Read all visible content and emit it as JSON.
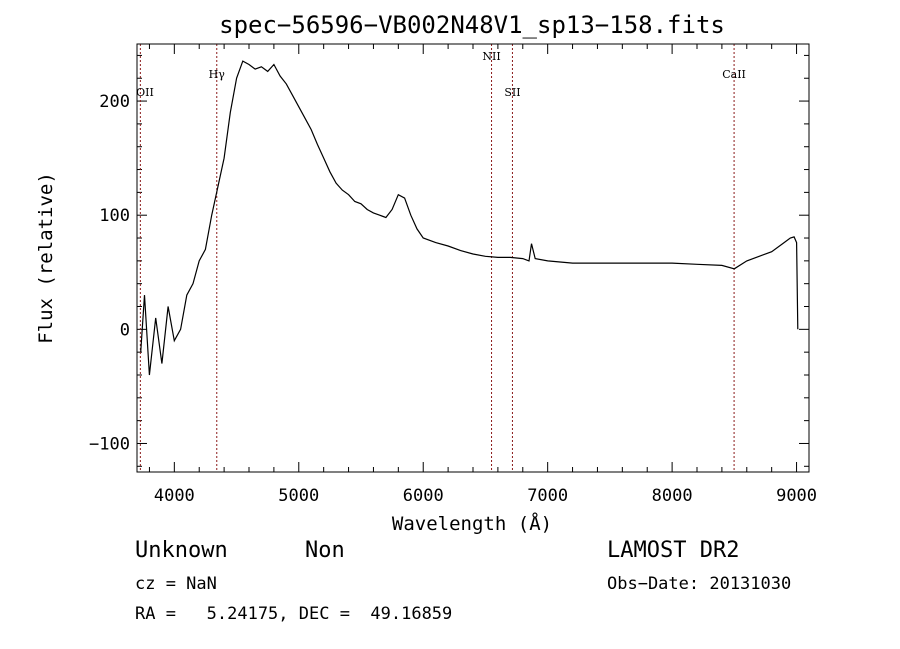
{
  "chart_data": {
    "type": "line",
    "title": "spec−56596−VB002N48V1_sp13−158.fits",
    "xlabel": "Wavelength (Å)",
    "ylabel": "Flux (relative)",
    "xlim": [
      3700,
      9100
    ],
    "ylim": [
      -125,
      250
    ],
    "xticks": [
      4000,
      5000,
      6000,
      7000,
      8000,
      9000
    ],
    "xtick_labels": [
      "4000",
      "5000",
      "6000",
      "7000",
      "8000",
      "9000"
    ],
    "yticks": [
      -100,
      0,
      100,
      200
    ],
    "ytick_labels": [
      "−100",
      "0",
      "100",
      "200"
    ],
    "grid": false,
    "lines": [
      {
        "label": "OII",
        "x": 3727
      },
      {
        "label": "Hγ",
        "x": 4341
      },
      {
        "label": "NII",
        "x": 6549
      },
      {
        "label": "SII",
        "x": 6717
      },
      {
        "label": "CaII",
        "x": 8498
      }
    ],
    "series": [
      {
        "x": [
          3730,
          3760,
          3800,
          3850,
          3900,
          3950,
          4000,
          4050,
          4100,
          4150,
          4200,
          4250,
          4300,
          4350,
          4400,
          4450,
          4500,
          4550,
          4600,
          4650,
          4700,
          4750,
          4800,
          4850,
          4900,
          4950,
          5000,
          5050,
          5100,
          5150,
          5200,
          5250,
          5300,
          5350,
          5400,
          5450,
          5500,
          5550,
          5600,
          5650,
          5700,
          5750,
          5800,
          5850,
          5900,
          5950,
          6000,
          6100,
          6200,
          6300,
          6400,
          6500,
          6600,
          6700,
          6800,
          6850,
          6870,
          6900,
          7000,
          7100,
          7200,
          7400,
          7600,
          7800,
          8000,
          8200,
          8400,
          8500,
          8600,
          8700,
          8800,
          8900,
          8950,
          8980,
          9000,
          9010
        ],
        "values": [
          -20,
          30,
          -40,
          10,
          -30,
          20,
          -10,
          0,
          30,
          40,
          60,
          70,
          100,
          125,
          150,
          190,
          220,
          235,
          232,
          228,
          230,
          226,
          232,
          222,
          215,
          205,
          195,
          185,
          175,
          162,
          150,
          138,
          128,
          122,
          118,
          112,
          110,
          105,
          102,
          100,
          98,
          105,
          118,
          115,
          100,
          88,
          80,
          76,
          73,
          69,
          66,
          64,
          63,
          63,
          62,
          60,
          75,
          62,
          60,
          59,
          58,
          58,
          58,
          58,
          58,
          57,
          56,
          53,
          60,
          64,
          68,
          76,
          80,
          81,
          76,
          0
        ]
      }
    ]
  },
  "info": {
    "class": "Unknown",
    "subclass": "Non",
    "survey": "LAMOST DR2",
    "cz": "cz = NaN",
    "obs_date": "Obs−Date: 20131030",
    "radec": "RA =   5.24175, DEC =  49.16859"
  }
}
